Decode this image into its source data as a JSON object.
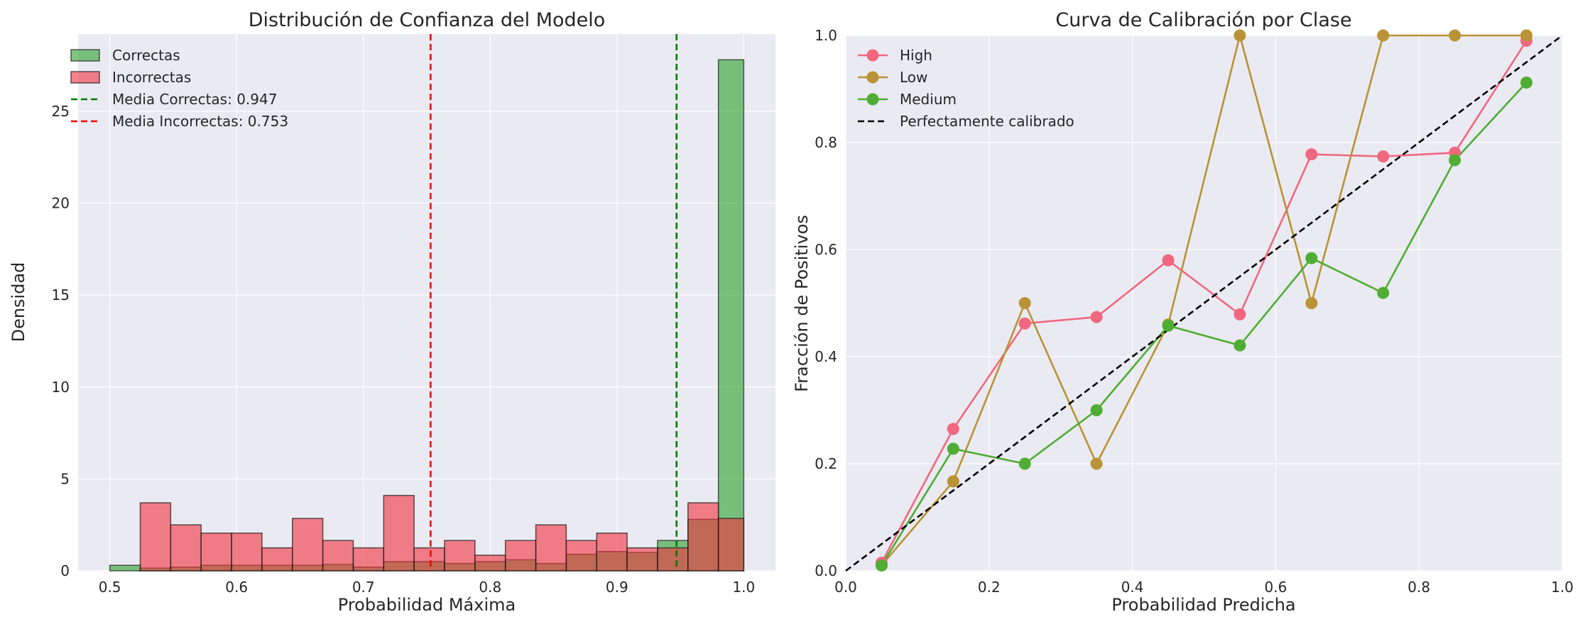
{
  "chart_data": [
    {
      "type": "histogram",
      "title": "Distribución de Confianza del Modelo",
      "xlabel": "Probabilidad Máxima",
      "ylabel": "Densidad",
      "xlim": [
        0.475,
        1.025
      ],
      "ylim": [
        0,
        29.2
      ],
      "xticks": [
        "0.5",
        "0.6",
        "0.7",
        "0.8",
        "0.9",
        "1.0"
      ],
      "yticks": [
        "0",
        "5",
        "10",
        "15",
        "20",
        "25"
      ],
      "grid": true,
      "legend_position": "top-left",
      "series": [
        {
          "name": "Correctas",
          "color": "#2ca02c",
          "bins": [
            [
              0.5,
              0.524,
              0.3
            ],
            [
              0.524,
              0.548,
              0.15
            ],
            [
              0.548,
              0.572,
              0.2
            ],
            [
              0.572,
              0.596,
              0.3
            ],
            [
              0.596,
              0.62,
              0.3
            ],
            [
              0.62,
              0.644,
              0.3
            ],
            [
              0.644,
              0.668,
              0.3
            ],
            [
              0.668,
              0.692,
              0.35
            ],
            [
              0.692,
              0.716,
              0.2
            ],
            [
              0.716,
              0.74,
              0.5
            ],
            [
              0.74,
              0.764,
              0.5
            ],
            [
              0.764,
              0.788,
              0.4
            ],
            [
              0.788,
              0.812,
              0.5
            ],
            [
              0.812,
              0.836,
              0.6
            ],
            [
              0.836,
              0.86,
              0.4
            ],
            [
              0.86,
              0.884,
              0.9
            ],
            [
              0.884,
              0.908,
              1.05
            ],
            [
              0.908,
              0.932,
              1.0
            ],
            [
              0.932,
              0.956,
              1.65
            ],
            [
              0.956,
              0.98,
              2.8
            ],
            [
              0.98,
              1.0,
              27.8
            ]
          ]
        },
        {
          "name": "Incorrectas",
          "color": "#f0303c",
          "bins": [
            [
              0.5,
              0.524,
              0.0
            ],
            [
              0.524,
              0.548,
              3.7
            ],
            [
              0.548,
              0.572,
              2.5
            ],
            [
              0.572,
              0.596,
              2.05
            ],
            [
              0.596,
              0.62,
              2.05
            ],
            [
              0.62,
              0.644,
              1.25
            ],
            [
              0.644,
              0.668,
              2.85
            ],
            [
              0.668,
              0.692,
              1.65
            ],
            [
              0.692,
              0.716,
              1.25
            ],
            [
              0.716,
              0.74,
              4.1
            ],
            [
              0.74,
              0.764,
              1.25
            ],
            [
              0.764,
              0.788,
              1.65
            ],
            [
              0.788,
              0.812,
              0.85
            ],
            [
              0.812,
              0.836,
              1.65
            ],
            [
              0.836,
              0.86,
              2.5
            ],
            [
              0.86,
              0.884,
              1.65
            ],
            [
              0.884,
              0.908,
              2.05
            ],
            [
              0.908,
              0.932,
              1.25
            ],
            [
              0.932,
              0.956,
              1.25
            ],
            [
              0.956,
              0.98,
              3.7
            ],
            [
              0.98,
              1.0,
              2.85
            ]
          ]
        }
      ],
      "vlines": [
        {
          "label": "Media Correctas: 0.947",
          "x": 0.947,
          "color": "#007a00"
        },
        {
          "label": "Media Incorrectas: 0.753",
          "x": 0.753,
          "color": "#ff0000"
        }
      ]
    },
    {
      "type": "line",
      "title": "Curva de Calibración por Clase",
      "xlabel": "Probabilidad Predicha",
      "ylabel": "Fracción de Positivos",
      "xlim": [
        0,
        1
      ],
      "ylim": [
        0,
        1
      ],
      "xticks": [
        "0.0",
        "0.2",
        "0.4",
        "0.6",
        "0.8",
        "1.0"
      ],
      "yticks": [
        "0.0",
        "0.2",
        "0.4",
        "0.6",
        "0.8",
        "1.0"
      ],
      "grid": true,
      "legend_position": "top-left",
      "series": [
        {
          "name": "High",
          "color": "#f0677f",
          "x": [
            0.05,
            0.15,
            0.25,
            0.35,
            0.45,
            0.55,
            0.65,
            0.75,
            0.85,
            0.95
          ],
          "y": [
            0.015,
            0.265,
            0.462,
            0.474,
            0.58,
            0.479,
            0.778,
            0.774,
            0.781,
            0.99
          ]
        },
        {
          "name": "Low",
          "color": "#b99335",
          "x": [
            0.05,
            0.15,
            0.25,
            0.35,
            0.45,
            0.55,
            0.65,
            0.75,
            0.85,
            0.95
          ],
          "y": [
            0.01,
            0.167,
            0.5,
            0.2,
            0.46,
            1.0,
            0.5,
            1.0,
            1.0,
            1.0
          ]
        },
        {
          "name": "Medium",
          "color": "#4ead32",
          "x": [
            0.05,
            0.15,
            0.25,
            0.35,
            0.45,
            0.55,
            0.65,
            0.75,
            0.85,
            0.95
          ],
          "y": [
            0.01,
            0.228,
            0.2,
            0.3,
            0.458,
            0.421,
            0.584,
            0.519,
            0.767,
            0.912
          ]
        }
      ],
      "reference_line": {
        "label": "Perfectamente calibrado",
        "x": [
          0,
          1
        ],
        "y": [
          0,
          1
        ],
        "color": "#000000"
      }
    }
  ]
}
